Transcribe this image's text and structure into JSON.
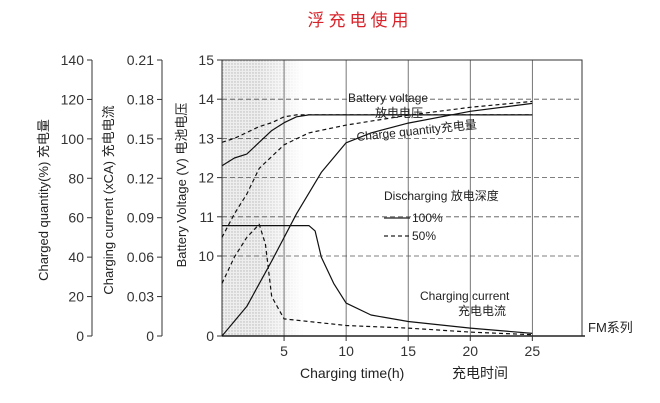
{
  "chart_data": {
    "type": "line",
    "title": "浮充电使用",
    "series_label": "FM系列",
    "xlabel": "Charging time(h)",
    "xlabel_cn": "充电时间",
    "xlim": [
      0,
      29
    ],
    "x_ticks": [
      "5",
      "10",
      "15",
      "20",
      "25"
    ],
    "x_tick_values": [
      5,
      10,
      15,
      20,
      25
    ],
    "y_axes": [
      {
        "label": "Charged quantity(%) 充电量",
        "ylim": [
          0,
          140
        ],
        "ticks": [
          "140",
          "120",
          "100",
          "80",
          "60",
          "40",
          "20",
          "0"
        ],
        "tick_values": [
          140,
          120,
          100,
          80,
          60,
          40,
          20,
          0
        ]
      },
      {
        "label": "Charging current (xCA) 充电电流",
        "ylim": [
          0,
          0.21
        ],
        "ticks": [
          "0.21",
          "0.18",
          "0.15",
          "0.12",
          "0.09",
          "0.06",
          "0.03",
          "0"
        ],
        "tick_values": [
          0.21,
          0.18,
          0.15,
          0.12,
          0.09,
          0.06,
          0.03,
          0
        ]
      },
      {
        "label": "Battery Voltage (V) 电池电压",
        "ylim": [
          0,
          15
        ],
        "ticks": [
          "15",
          "14",
          "13",
          "12",
          "11",
          "10",
          "0"
        ],
        "tick_values": [
          15,
          14,
          13,
          12,
          11,
          10,
          0
        ]
      }
    ],
    "annotations": {
      "battery_voltage": "Battery voltage",
      "battery_voltage_cn": "放电电压",
      "charge_quantity": "Charge quantity充电量",
      "discharging": "Discharging 放电深度",
      "legend_100": "100%",
      "legend_50": "50%",
      "charging_current": "Charging current",
      "charging_current_cn": "充电电流"
    },
    "series": [
      {
        "name": "Battery voltage 100%",
        "axis": "voltage",
        "style": "solid",
        "points": [
          [
            0,
            12.3
          ],
          [
            1,
            12.5
          ],
          [
            2,
            12.6
          ],
          [
            3,
            12.9
          ],
          [
            4,
            13.2
          ],
          [
            5,
            13.4
          ],
          [
            6,
            13.55
          ],
          [
            7,
            13.6
          ],
          [
            25,
            13.6
          ]
        ]
      },
      {
        "name": "Battery voltage 50%",
        "axis": "voltage",
        "style": "dashed",
        "points": [
          [
            0,
            12.9
          ],
          [
            1,
            13.0
          ],
          [
            2,
            13.15
          ],
          [
            3,
            13.3
          ],
          [
            4,
            13.4
          ],
          [
            5,
            13.55
          ],
          [
            6,
            13.6
          ],
          [
            25,
            13.6
          ]
        ]
      },
      {
        "name": "Charge quantity 100%",
        "axis": "quantity",
        "style": "solid",
        "points": [
          [
            0,
            0
          ],
          [
            2,
            15
          ],
          [
            4,
            38
          ],
          [
            6,
            62
          ],
          [
            8,
            83
          ],
          [
            10,
            98
          ],
          [
            12,
            103
          ],
          [
            15,
            108
          ],
          [
            20,
            114
          ],
          [
            25,
            118
          ]
        ]
      },
      {
        "name": "Charge quantity 50%",
        "axis": "quantity",
        "style": "dashed",
        "points": [
          [
            0,
            50
          ],
          [
            1,
            62
          ],
          [
            2,
            72
          ],
          [
            3,
            85
          ],
          [
            5,
            97
          ],
          [
            7,
            103
          ],
          [
            10,
            107
          ],
          [
            15,
            112
          ],
          [
            20,
            116
          ],
          [
            25,
            119
          ]
        ]
      },
      {
        "name": "Charging current 100%",
        "axis": "current",
        "style": "solid",
        "points": [
          [
            0,
            0.084
          ],
          [
            7,
            0.084
          ],
          [
            7.5,
            0.08
          ],
          [
            8,
            0.06
          ],
          [
            9,
            0.04
          ],
          [
            10,
            0.025
          ],
          [
            12,
            0.016
          ],
          [
            15,
            0.011
          ],
          [
            20,
            0.006
          ],
          [
            25,
            0.002
          ]
        ]
      },
      {
        "name": "Charging current 50%",
        "axis": "current",
        "style": "dashed",
        "points": [
          [
            0,
            0.04
          ],
          [
            1,
            0.06
          ],
          [
            2,
            0.075
          ],
          [
            3,
            0.085
          ],
          [
            3.5,
            0.07
          ],
          [
            4,
            0.03
          ],
          [
            5,
            0.013
          ],
          [
            7,
            0.011
          ],
          [
            10,
            0.008
          ],
          [
            15,
            0.006
          ],
          [
            20,
            0.003
          ],
          [
            25,
            0.001
          ]
        ]
      }
    ]
  }
}
